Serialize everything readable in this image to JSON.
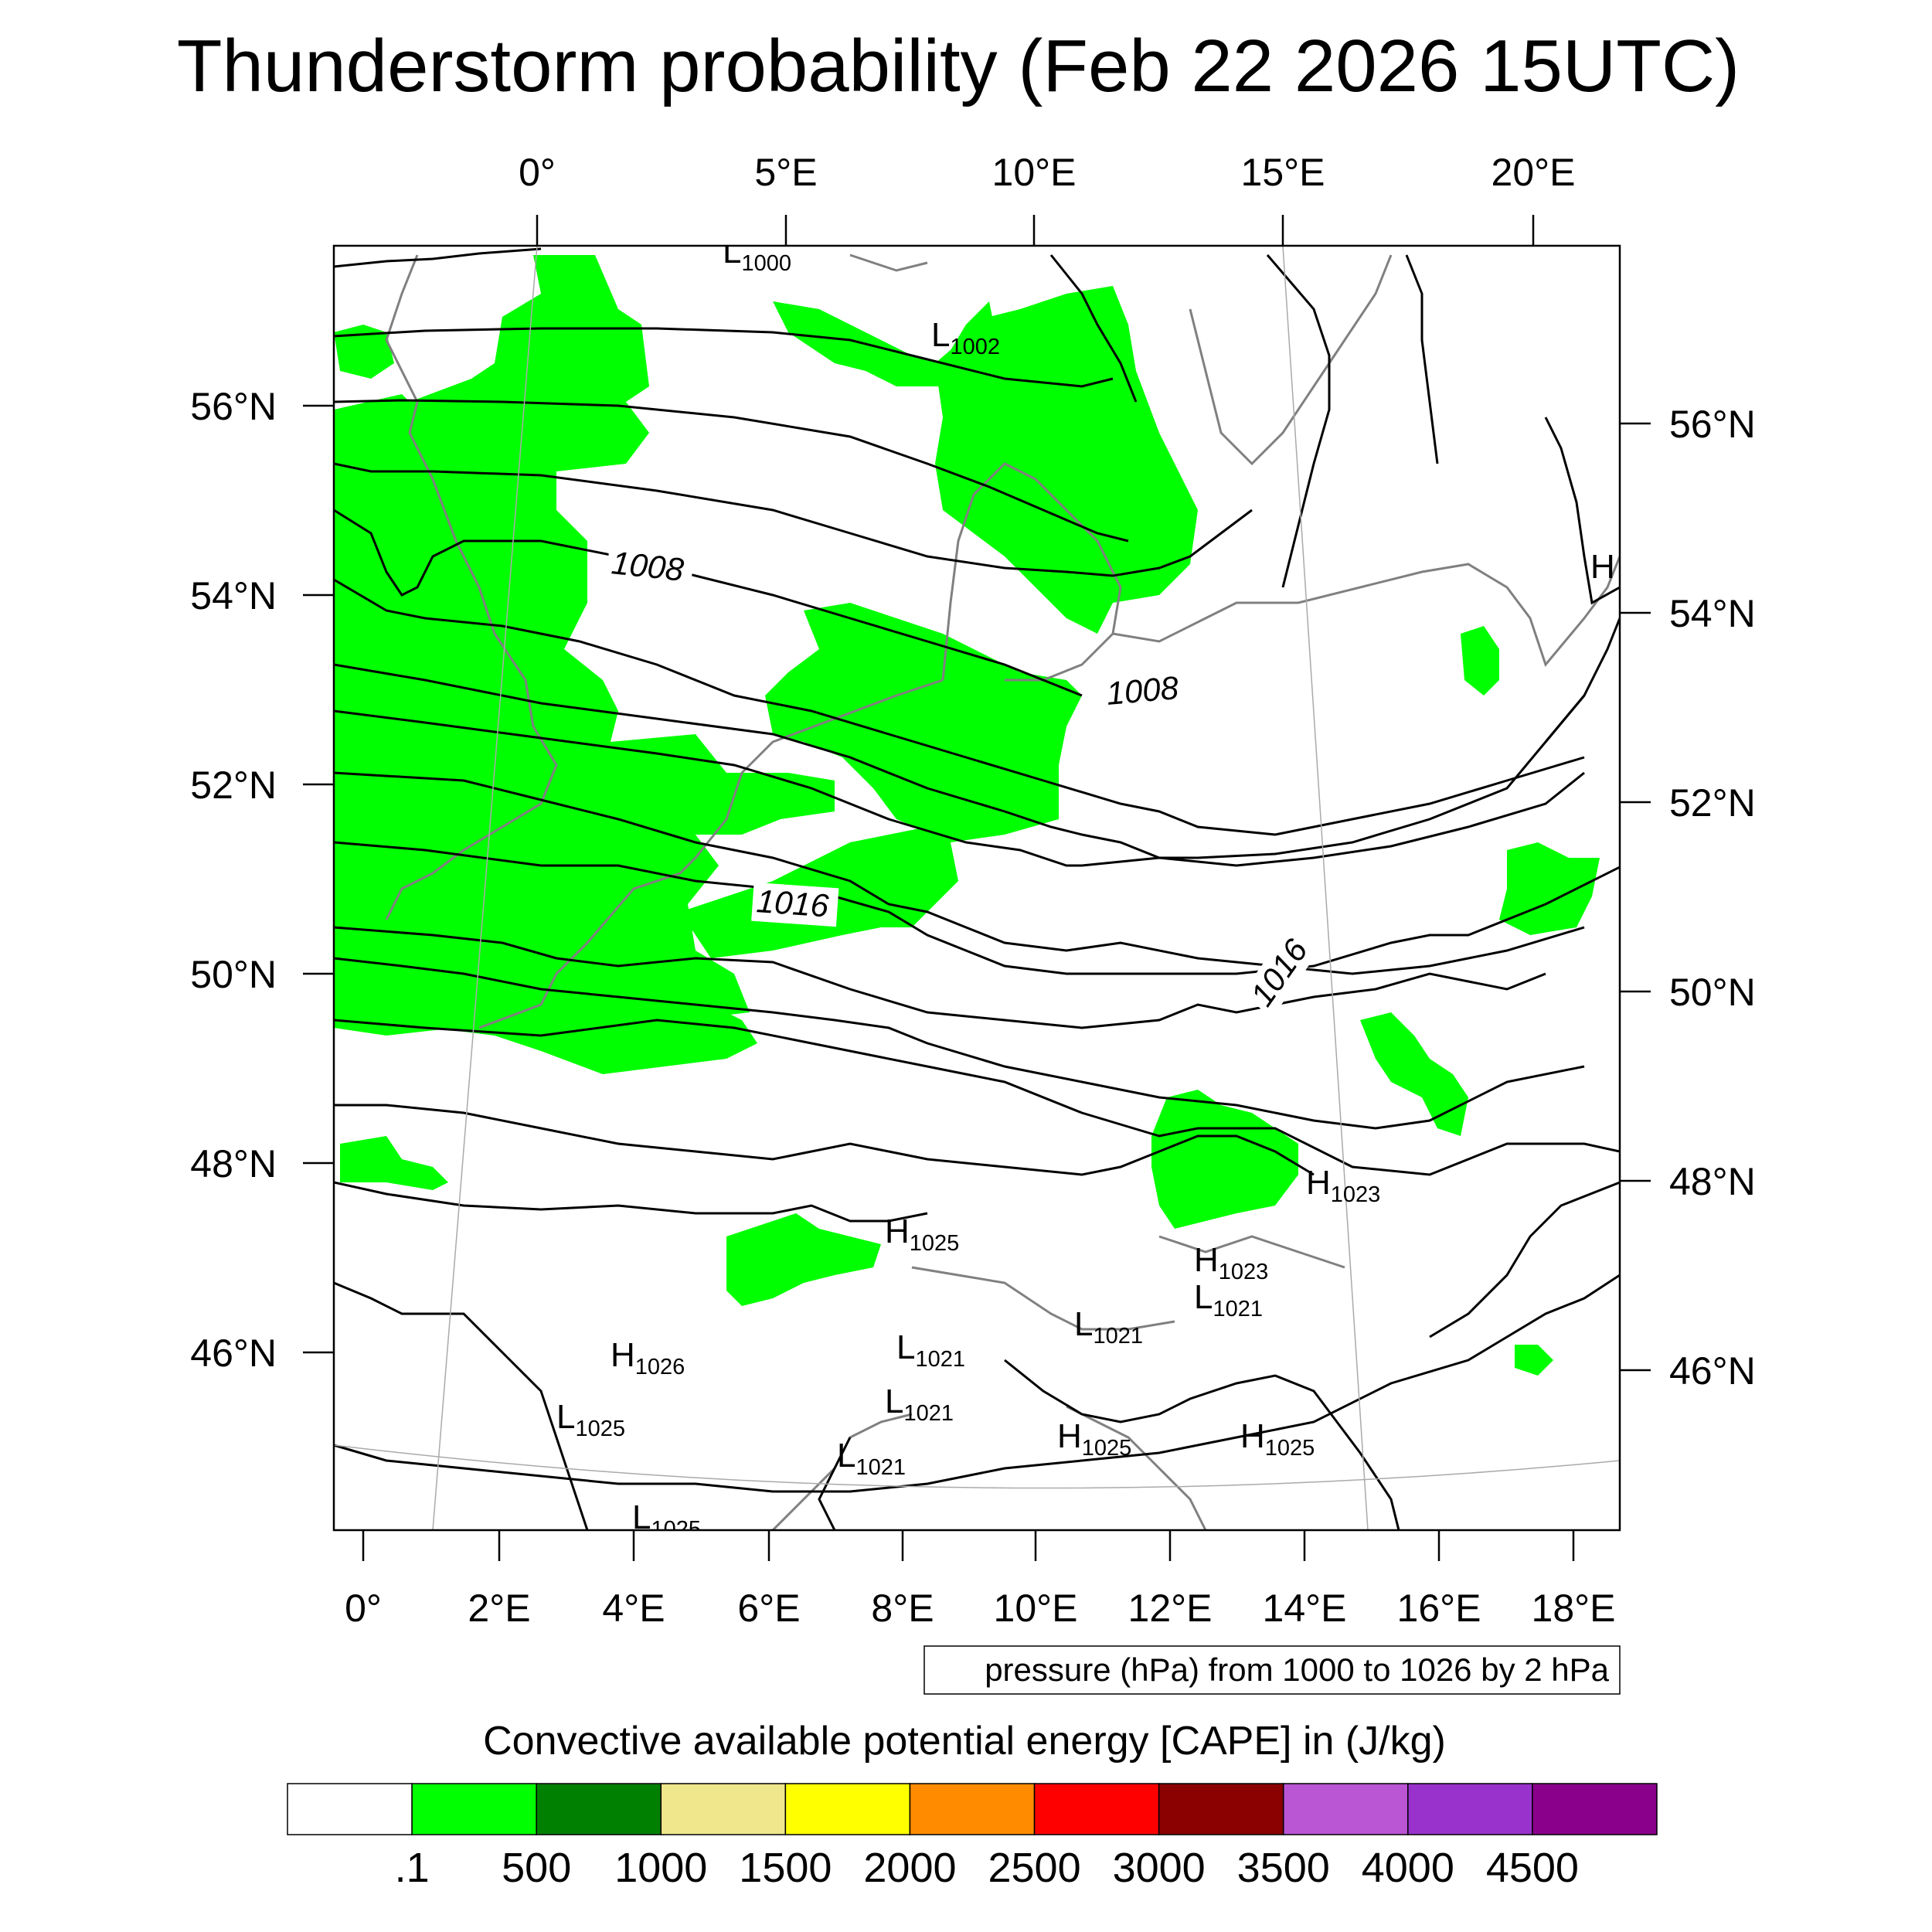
{
  "title": "Thunderstorm probability (Feb 22 2026 15UTC)",
  "map": {
    "top_lon_labels": [
      "0°",
      "5°E",
      "10°E",
      "15°E",
      "20°E"
    ],
    "bottom_lon_labels": [
      "0°",
      "2°E",
      "4°E",
      "6°E",
      "8°E",
      "10°E",
      "12°E",
      "14°E",
      "16°E",
      "18°E"
    ],
    "left_lat_labels": [
      "56°N",
      "54°N",
      "52°N",
      "50°N",
      "48°N",
      "46°N"
    ],
    "right_lat_labels": [
      "56°N",
      "54°N",
      "52°N",
      "50°N",
      "48°N",
      "46°N"
    ],
    "contour_labels": [
      "1008",
      "1008",
      "1016",
      "1016"
    ],
    "pressure_centers": [
      {
        "type": "L",
        "value": "1000"
      },
      {
        "type": "L",
        "value": "1002"
      },
      {
        "type": "H",
        "value": ""
      },
      {
        "type": "H",
        "value": "1023"
      },
      {
        "type": "H",
        "value": "1025"
      },
      {
        "type": "H",
        "value": "1023"
      },
      {
        "type": "L",
        "value": "1021"
      },
      {
        "type": "H",
        "value": "1026"
      },
      {
        "type": "L",
        "value": "1021"
      },
      {
        "type": "L",
        "value": "1021"
      },
      {
        "type": "L",
        "value": "1025"
      },
      {
        "type": "L",
        "value": "1021"
      },
      {
        "type": "H",
        "value": "1025"
      },
      {
        "type": "H",
        "value": "1025"
      },
      {
        "type": "L",
        "value": "1021"
      },
      {
        "type": "L",
        "value": "1025"
      }
    ],
    "shade_color": "#00ff00",
    "contour_color": "#000000",
    "coast_color": "#808080"
  },
  "info_box": "pressure (hPa) from 1000 to 1026 by 2 hPa",
  "colorbar": {
    "title": "Convective available potential energy [CAPE] in (J/kg)",
    "colors": [
      "#ffffff",
      "#00ff00",
      "#008000",
      "#f0e68c",
      "#ffff00",
      "#ff8c00",
      "#ff0000",
      "#8b0000",
      "#ba55d3",
      "#9932cc",
      "#8b008b"
    ],
    "labels": [
      ".1",
      "500",
      "1000",
      "1500",
      "2000",
      "2500",
      "3000",
      "3500",
      "4000",
      "4500"
    ]
  }
}
